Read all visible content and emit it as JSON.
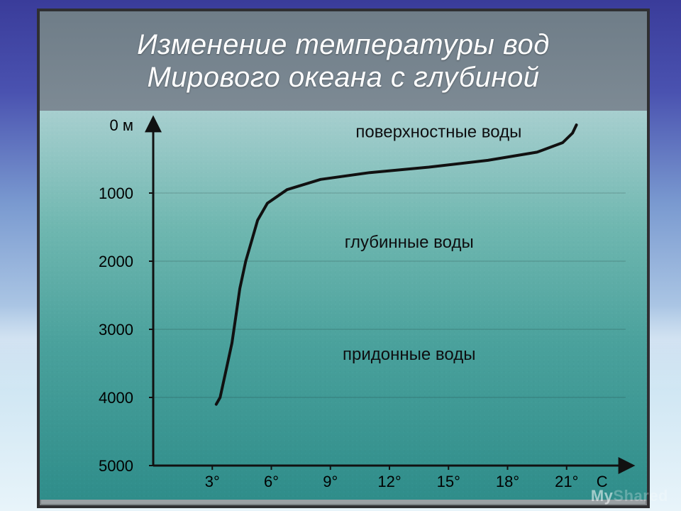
{
  "title": {
    "line1": "Изменение температуры вод",
    "line2": "Мирового океана с глубиной",
    "color": "#ffffff",
    "font_style": "italic",
    "fontsize": 40
  },
  "chart": {
    "type": "line",
    "x_axis": {
      "label_suffix": "°",
      "unit_label": "С",
      "ticks": [
        3,
        6,
        9,
        12,
        15,
        18,
        21
      ],
      "fontsize": 22
    },
    "y_axis": {
      "unit_label": "0 м",
      "ticks": [
        0,
        1000,
        2000,
        3000,
        4000,
        5000
      ],
      "fontsize": 22,
      "direction": "down"
    },
    "xlim": [
      0,
      24
    ],
    "ylim": [
      0,
      5000
    ],
    "line": {
      "color": "#111111",
      "width": 4,
      "points_temp_depth": [
        [
          21.5,
          0
        ],
        [
          21.3,
          120
        ],
        [
          20.8,
          260
        ],
        [
          19.5,
          400
        ],
        [
          17.0,
          520
        ],
        [
          14.0,
          620
        ],
        [
          11.0,
          700
        ],
        [
          8.5,
          800
        ],
        [
          6.8,
          950
        ],
        [
          5.8,
          1150
        ],
        [
          5.3,
          1400
        ],
        [
          5.0,
          1700
        ],
        [
          4.7,
          2000
        ],
        [
          4.4,
          2400
        ],
        [
          4.2,
          2800
        ],
        [
          4.0,
          3200
        ],
        [
          3.7,
          3600
        ],
        [
          3.4,
          4000
        ],
        [
          3.2,
          4100
        ]
      ]
    },
    "axis_color": "#111111",
    "axis_width": 3,
    "grid_color": "rgba(0,0,0,0.20)",
    "background_gradient": [
      "#a7cfcf",
      "#6fb7b0",
      "#4aa19c",
      "#2f8d8a"
    ],
    "layer_labels": [
      {
        "text": "поверхностные воды",
        "temp": 14.5,
        "depth": 180,
        "fontsize": 24
      },
      {
        "text": "глубинные воды",
        "temp": 13.0,
        "depth": 1800,
        "fontsize": 24
      },
      {
        "text": "придонные воды",
        "temp": 13.0,
        "depth": 3450,
        "fontsize": 24
      }
    ],
    "label_color": "#0e0e10"
  },
  "panel": {
    "border_color": "#2f2f32",
    "title_bg": [
      "#6f7d88",
      "#7d8a94"
    ]
  },
  "watermark": {
    "visible_text": "My",
    "faded_text": "Shared"
  }
}
